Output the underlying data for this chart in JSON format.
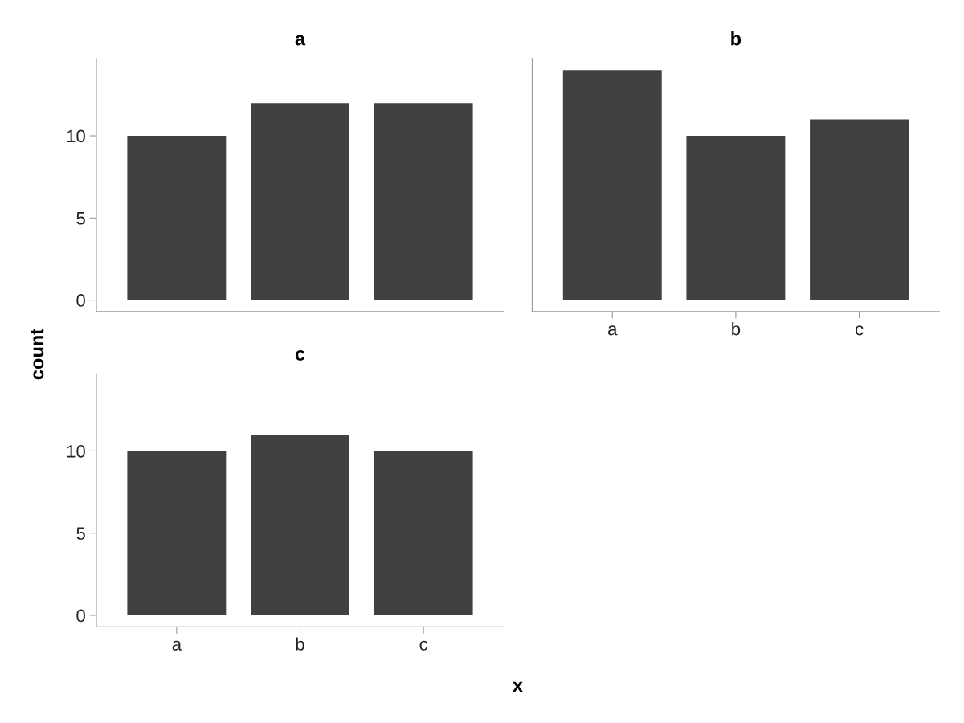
{
  "chart_data": [
    {
      "type": "bar",
      "title": "a",
      "ylabel": "count",
      "categories": [
        null,
        null,
        null
      ],
      "values": [
        10,
        12,
        12
      ],
      "color": "#404040",
      "ylim": [
        -0.7,
        14.7
      ],
      "yticks": [
        0,
        5,
        10
      ],
      "tick_labels": "y",
      "grid": false,
      "legend": false
    },
    {
      "type": "bar",
      "title": "b",
      "categories": [
        "a",
        "b",
        "c"
      ],
      "values": [
        14,
        10,
        11
      ],
      "color": "#404040",
      "ylim": [
        -0.7,
        14.7
      ],
      "yticks": [
        0,
        5,
        10
      ],
      "tick_labels": "x",
      "grid": false,
      "legend": false
    },
    {
      "type": "bar",
      "title": "c",
      "xlabel": "x",
      "categories": [
        "a",
        "b",
        "c"
      ],
      "values": [
        10,
        11,
        10
      ],
      "color": "#404040",
      "ylim": [
        -0.7,
        14.7
      ],
      "yticks": [
        0,
        5,
        10
      ],
      "grid": false,
      "legend": false
    }
  ]
}
